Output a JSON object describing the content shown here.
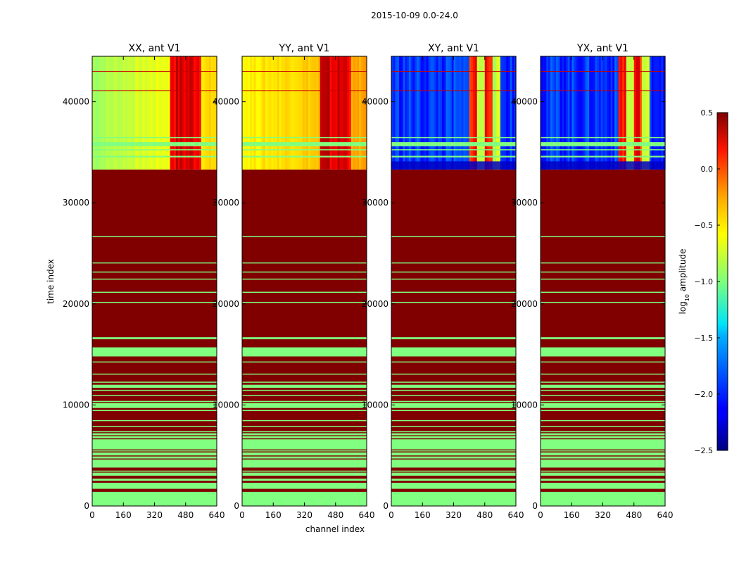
{
  "chart_data": {
    "type": "heatmap",
    "suptitle": "2015-10-09 0.0-24.0",
    "xlabel": "channel index",
    "ylabel": "time index",
    "xlim": [
      0,
      640
    ],
    "ylim": [
      0,
      44500
    ],
    "x_ticks": [
      0,
      160,
      320,
      480,
      640
    ],
    "y_ticks": [
      0,
      10000,
      20000,
      30000,
      40000
    ],
    "panels": [
      {
        "title": "XX, ant V1",
        "style": "parallel"
      },
      {
        "title": "YY, ant V1",
        "style": "parallel"
      },
      {
        "title": "XY, ant V1",
        "style": "cross"
      },
      {
        "title": "YX, ant V1",
        "style": "cross"
      }
    ],
    "colorbar": {
      "label_prefix": "log",
      "label_sub": "10",
      "label_suffix": " amplitude",
      "range": [
        -2.5,
        0.5
      ],
      "ticks": [
        0.5,
        0.0,
        -0.5,
        -1.0,
        -1.5,
        -2.0,
        -2.5
      ],
      "tick_labels": [
        "0.5",
        "0.0",
        "−0.5",
        "−1.0",
        "−1.5",
        "−2.0",
        "−2.5"
      ],
      "colormap": "jet"
    },
    "data_region": {
      "time_start": 33300,
      "time_end": 44500
    },
    "saturated_value": 0.5,
    "flagged_value": -1.0,
    "rfi_channel_band": [
      400,
      560
    ],
    "flag_rows": [
      [
        35600,
        36000
      ],
      [
        34500,
        34650
      ],
      [
        35200,
        35300
      ],
      [
        36400,
        36500
      ],
      [
        2500,
        2700
      ],
      [
        3400,
        3500
      ],
      [
        4700,
        4900
      ],
      [
        5400,
        5500
      ],
      [
        6700,
        6900
      ],
      [
        7300,
        7400
      ],
      [
        7800,
        7900
      ],
      [
        8400,
        8500
      ],
      [
        9400,
        9500
      ],
      [
        10300,
        10400
      ],
      [
        10900,
        11000
      ],
      [
        11400,
        11500
      ],
      [
        12200,
        12300
      ],
      [
        13000,
        13100
      ],
      [
        14200,
        14300
      ],
      [
        20100,
        20200
      ],
      [
        21100,
        21200
      ],
      [
        22400,
        22500
      ],
      [
        23100,
        23200
      ],
      [
        24000,
        24100
      ],
      [
        26600,
        26700
      ]
    ],
    "flag_blocks": [
      [
        0,
        1400
      ],
      [
        1700,
        2300
      ],
      [
        3000,
        3300
      ],
      [
        3800,
        4600
      ],
      [
        5000,
        5300
      ],
      [
        5600,
        6600
      ],
      [
        7000,
        7200
      ],
      [
        9700,
        10200
      ],
      [
        11700,
        12000
      ],
      [
        14800,
        15700
      ],
      [
        16500,
        16700
      ]
    ]
  }
}
